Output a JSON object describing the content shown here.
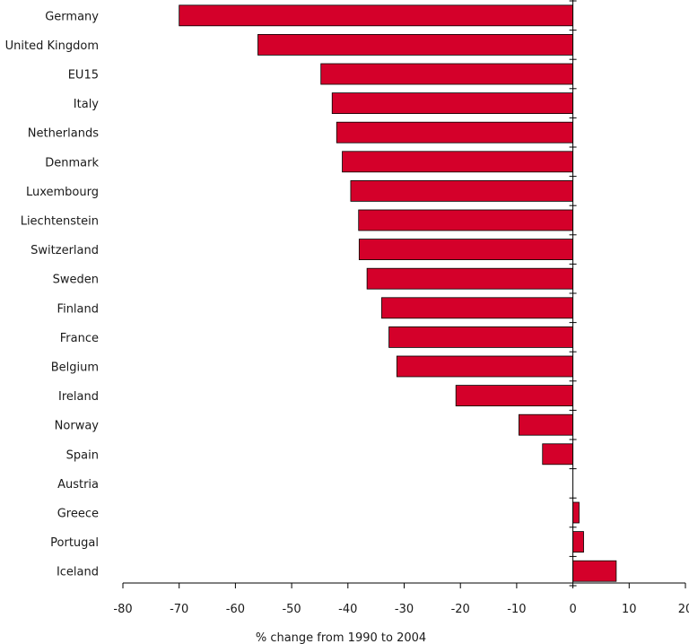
{
  "chart_data": {
    "type": "bar",
    "orientation": "horizontal",
    "title": "",
    "xlabel": "% change from 1990 to 2004",
    "ylabel": "",
    "xlim": [
      -80,
      20
    ],
    "xticks": [
      -80,
      -70,
      -60,
      -50,
      -40,
      -30,
      -20,
      -10,
      0,
      10,
      20
    ],
    "grid": false,
    "legend": "none",
    "bar_color": "#d4002a",
    "categories": [
      "Germany",
      "United Kingdom",
      "EU15",
      "Italy",
      "Netherlands",
      "Denmark",
      "Luxembourg",
      "Liechtenstein",
      "Switzerland",
      "Sweden",
      "Finland",
      "France",
      "Belgium",
      "Ireland",
      "Norway",
      "Spain",
      "Austria",
      "Greece",
      "Portugal",
      "Iceland"
    ],
    "values": [
      -70,
      -56,
      -44.8,
      -42.8,
      -42,
      -41,
      -39.5,
      -38.1,
      -38,
      -36.6,
      -34,
      -32.7,
      -31.3,
      -20.8,
      -9.6,
      -5.4,
      0,
      1.1,
      1.9,
      7.7
    ]
  }
}
